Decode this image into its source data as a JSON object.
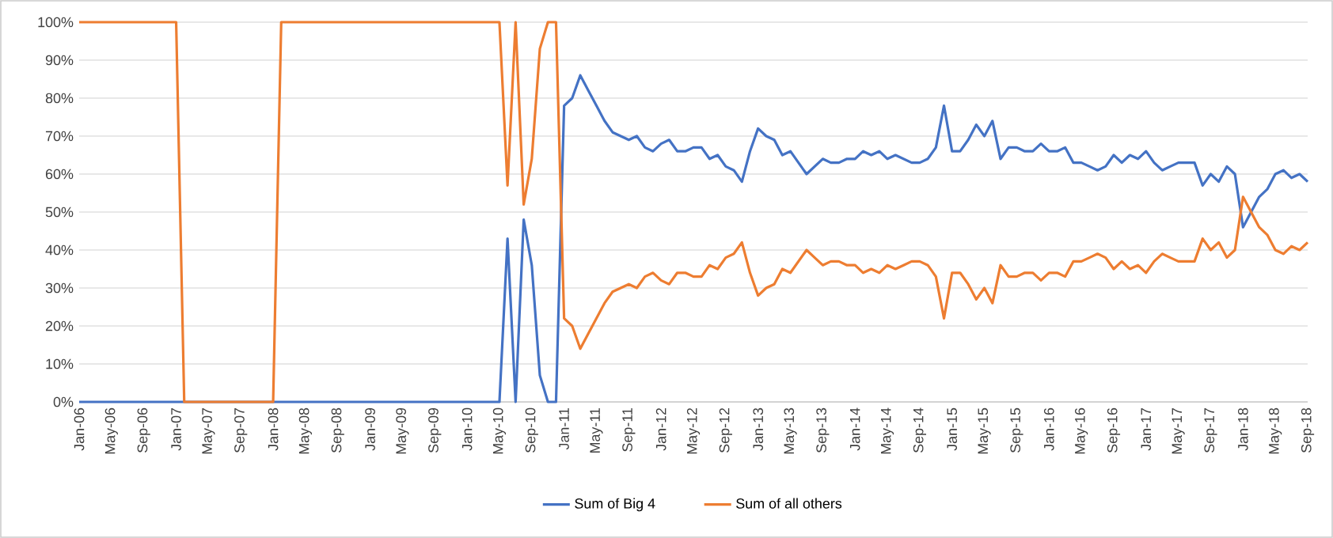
{
  "chart_data": {
    "type": "line",
    "categories": [
      "Jan-06",
      null,
      null,
      null,
      "May-06",
      null,
      null,
      null,
      "Sep-06",
      null,
      null,
      null,
      "Jan-07",
      null,
      null,
      null,
      "May-07",
      null,
      null,
      null,
      "Sep-07",
      null,
      null,
      null,
      "Jan-08",
      null,
      null,
      null,
      "May-08",
      null,
      null,
      null,
      "Sep-08",
      null,
      null,
      null,
      "Jan-09",
      null,
      null,
      null,
      "May-09",
      null,
      null,
      null,
      "Sep-09",
      null,
      null,
      null,
      "Jan-10",
      null,
      null,
      null,
      "May-10",
      null,
      null,
      null,
      "Sep-10",
      null,
      null,
      null,
      "Jan-11",
      null,
      null,
      null,
      "May-11",
      null,
      null,
      null,
      "Sep-11",
      null,
      null,
      null,
      "Jan-12",
      null,
      null,
      null,
      "May-12",
      null,
      null,
      null,
      "Sep-12",
      null,
      null,
      null,
      "Jan-13",
      null,
      null,
      null,
      "May-13",
      null,
      null,
      null,
      "Sep-13",
      null,
      null,
      null,
      "Jan-14",
      null,
      null,
      null,
      "May-14",
      null,
      null,
      null,
      "Sep-14",
      null,
      null,
      null,
      "Jan-15",
      null,
      null,
      null,
      "May-15",
      null,
      null,
      null,
      "Sep-15",
      null,
      null,
      null,
      "Jan-16",
      null,
      null,
      null,
      "May-16",
      null,
      null,
      null,
      "Sep-16",
      null,
      null,
      null,
      "Jan-17",
      null,
      null,
      null,
      "May-17",
      null,
      null,
      null,
      "Sep-17",
      null,
      null,
      null,
      "Jan-18",
      null,
      null,
      null,
      "May-18",
      null,
      null,
      null,
      "Sep-18"
    ],
    "series": [
      {
        "name": "Sum of Big 4",
        "color": "#4472c4",
        "values": [
          0,
          0,
          0,
          0,
          0,
          0,
          0,
          0,
          0,
          0,
          0,
          0,
          0,
          0,
          0,
          0,
          0,
          0,
          0,
          0,
          0,
          0,
          0,
          0,
          0,
          0,
          0,
          0,
          0,
          0,
          0,
          0,
          0,
          0,
          0,
          0,
          0,
          0,
          0,
          0,
          0,
          0,
          0,
          0,
          0,
          0,
          0,
          0,
          0,
          0,
          0,
          0,
          0,
          43,
          0,
          48,
          36,
          7,
          0,
          0,
          78,
          80,
          86,
          82,
          78,
          74,
          71,
          70,
          69,
          70,
          67,
          66,
          68,
          69,
          66,
          66,
          67,
          67,
          64,
          65,
          62,
          61,
          58,
          66,
          72,
          70,
          69,
          65,
          66,
          63,
          60,
          62,
          64,
          63,
          63,
          64,
          64,
          66,
          65,
          66,
          64,
          65,
          64,
          63,
          63,
          64,
          67,
          78,
          66,
          66,
          69,
          73,
          70,
          74,
          64,
          67,
          67,
          66,
          66,
          68,
          66,
          66,
          67,
          63,
          63,
          62,
          61,
          62,
          65,
          63,
          65,
          64,
          66,
          63,
          61,
          62,
          63,
          63,
          63,
          57,
          60,
          58,
          62,
          60,
          46,
          50,
          54,
          56,
          60,
          61,
          59,
          60,
          58
        ]
      },
      {
        "name": "Sum of all others",
        "color": "#ed7d31",
        "values": [
          100,
          100,
          100,
          100,
          100,
          100,
          100,
          100,
          100,
          100,
          100,
          100,
          100,
          0,
          0,
          0,
          0,
          0,
          0,
          0,
          0,
          0,
          0,
          0,
          0,
          100,
          100,
          100,
          100,
          100,
          100,
          100,
          100,
          100,
          100,
          100,
          100,
          100,
          100,
          100,
          100,
          100,
          100,
          100,
          100,
          100,
          100,
          100,
          100,
          100,
          100,
          100,
          100,
          57,
          100,
          52,
          64,
          93,
          100,
          100,
          22,
          20,
          14,
          18,
          22,
          26,
          29,
          30,
          31,
          30,
          33,
          34,
          32,
          31,
          34,
          34,
          33,
          33,
          36,
          35,
          38,
          39,
          42,
          34,
          28,
          30,
          31,
          35,
          34,
          37,
          40,
          38,
          36,
          37,
          37,
          36,
          36,
          34,
          35,
          34,
          36,
          35,
          36,
          37,
          37,
          36,
          33,
          22,
          34,
          34,
          31,
          27,
          30,
          26,
          36,
          33,
          33,
          34,
          34,
          32,
          34,
          34,
          33,
          37,
          37,
          38,
          39,
          38,
          35,
          37,
          35,
          36,
          34,
          37,
          39,
          38,
          37,
          37,
          37,
          43,
          40,
          42,
          38,
          40,
          54,
          50,
          46,
          44,
          40,
          39,
          41,
          40,
          42
        ]
      }
    ],
    "ylim": [
      0,
      100
    ],
    "yticks": [
      {
        "value": 0,
        "label": "0%"
      },
      {
        "value": 10,
        "label": "10%"
      },
      {
        "value": 20,
        "label": "20%"
      },
      {
        "value": 30,
        "label": "30%"
      },
      {
        "value": 40,
        "label": "40%"
      },
      {
        "value": 50,
        "label": "50%"
      },
      {
        "value": 60,
        "label": "60%"
      },
      {
        "value": 70,
        "label": "70%"
      },
      {
        "value": 80,
        "label": "80%"
      },
      {
        "value": 90,
        "label": "90%"
      },
      {
        "value": 100,
        "label": "100%"
      }
    ],
    "grid": "y",
    "legend": "bottom",
    "marker": "none"
  }
}
